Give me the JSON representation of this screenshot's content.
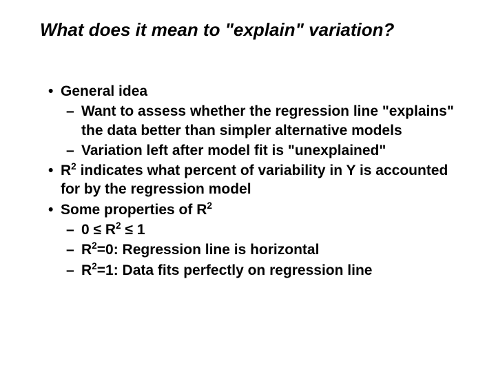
{
  "background_color": "#ffffff",
  "text_color": "#000000",
  "title_fontsize": 26,
  "body_fontsize": 21,
  "title": "What does it mean to \"explain\" variation?",
  "b1": {
    "text": "General idea"
  },
  "b1a": {
    "text": "Want to assess whether the regression line \"explains\" the data better than simpler alternative models"
  },
  "b1b": {
    "text": "Variation left after model fit is \"unexplained\""
  },
  "b2": {
    "pre": "R",
    "sup": "2",
    "post": " indicates what percent of variability in Y is accounted for by the regression model"
  },
  "b3": {
    "pre": "Some properties of R",
    "sup": "2"
  },
  "b3a": {
    "t0": "0 ",
    "leq1": "≤",
    "t1": " R",
    "sup": "2",
    "t2": " ",
    "leq2": "≤",
    "t3": " 1"
  },
  "b3b": {
    "pre": "R",
    "sup": "2",
    "post": "=0:  Regression line is horizontal"
  },
  "b3c": {
    "pre": "R",
    "sup": "2",
    "post": "=1:  Data fits perfectly on regression line"
  }
}
